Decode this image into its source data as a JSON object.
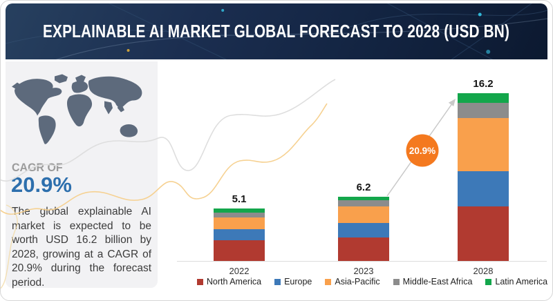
{
  "header": {
    "title": "EXPLAINABLE AI MARKET GLOBAL FORECAST TO 2028 (USD BN)"
  },
  "sidebar": {
    "cagr_label": "CAGR OF",
    "cagr_value": "20.9%",
    "description": "The global explainable AI market is expected to be worth USD 16.2 billion by 2028, growing at a CAGR of 20.9% during the forecast period."
  },
  "chart_data": {
    "type": "bar",
    "stacked": true,
    "title": "Explainable AI Market Global Forecast to 2028 (USD BN)",
    "unit": "USD BN",
    "categories": [
      "2022",
      "2023",
      "2028"
    ],
    "series": [
      {
        "name": "North America",
        "color": "#b13a30",
        "values": [
          2.0,
          2.3,
          5.3
        ]
      },
      {
        "name": "Europe",
        "color": "#3d79b8",
        "values": [
          1.1,
          1.4,
          3.4
        ]
      },
      {
        "name": "Asia-Pacific",
        "color": "#f9a04c",
        "values": [
          1.1,
          1.6,
          5.1
        ]
      },
      {
        "name": "Middle-East Africa",
        "color": "#8c8c8c",
        "values": [
          0.5,
          0.6,
          1.5
        ]
      },
      {
        "name": "Latin America",
        "color": "#13a64b",
        "values": [
          0.4,
          0.3,
          0.9
        ]
      }
    ],
    "totals": [
      5.1,
      6.2,
      16.2
    ],
    "total_labels": [
      "5.1",
      "6.2",
      "16.2"
    ],
    "growth_bubble": {
      "label": "20.9%",
      "color": "#f4791f"
    },
    "legend_position": "bottom",
    "x_axis_visible": true,
    "y_axis_visible": false,
    "ylim": [
      0,
      16.2
    ]
  },
  "colors": {
    "header_bg": "#16294a",
    "sidebar_bg": "#f2f2f4",
    "cagr_blue": "#2d6fad",
    "map_gray": "#5d6a7c",
    "deco_gray": "#dedede",
    "deco_yellow": "#f6cf8b",
    "arrow_gray": "#c9c9c9"
  }
}
